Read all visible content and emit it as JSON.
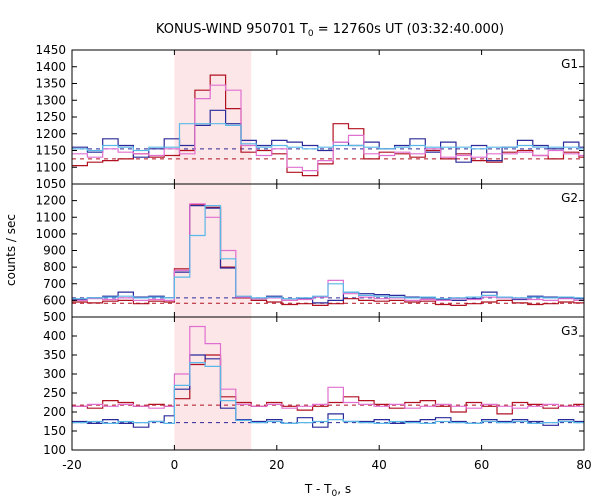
{
  "chart_data": {
    "type": "line",
    "title": "KONUS-WIND 950701 T",
    "title_sub": "0",
    "title_rest": " = 12760s UT (03:32:40.000)",
    "xlabel_main": "T - T",
    "xlabel_sub": "0",
    "xlabel_tail": ", s",
    "ylabel": "counts / sec",
    "xlim": [
      -20,
      80
    ],
    "x_ticks": [
      -20,
      0,
      20,
      40,
      60,
      80
    ],
    "highlight_interval": [
      0,
      15
    ],
    "colors": {
      "dark_red": "#b01020",
      "dark_blue": "#2a2a9a",
      "pink": "#e070d0",
      "light_blue": "#5ab8e8",
      "highlight": "#fde6e8"
    },
    "panels": [
      {
        "label": "G1",
        "ylim": [
          1050,
          1450
        ],
        "y_ticks": [
          1050,
          1100,
          1150,
          1200,
          1250,
          1300,
          1350,
          1400,
          1450
        ],
        "baselines": [
          {
            "y": 1155,
            "color": "dark_blue"
          },
          {
            "y": 1125,
            "color": "dark_red"
          }
        ],
        "series": [
          {
            "color": "dark_red",
            "edges": [
              -20,
              -17,
              -14,
              -11,
              -8,
              -5,
              -2,
              1,
              4,
              7,
              10,
              13,
              16,
              19,
              22,
              25,
              28,
              31,
              34,
              37,
              40,
              43,
              46,
              49,
              52,
              55,
              58,
              61,
              64,
              67,
              70,
              73,
              76,
              79,
              80
            ],
            "values": [
              1105,
              1115,
              1120,
              1125,
              1140,
              1130,
              1135,
              1150,
              1330,
              1375,
              1275,
              1145,
              1150,
              1140,
              1085,
              1075,
              1110,
              1230,
              1215,
              1125,
              1145,
              1140,
              1130,
              1150,
              1125,
              1140,
              1120,
              1115,
              1145,
              1150,
              1135,
              1125,
              1145,
              1130
            ]
          },
          {
            "color": "dark_blue",
            "edges": [
              -20,
              -17,
              -14,
              -11,
              -8,
              -5,
              -2,
              1,
              4,
              7,
              10,
              13,
              16,
              19,
              22,
              25,
              28,
              31,
              34,
              37,
              40,
              43,
              46,
              49,
              52,
              55,
              58,
              61,
              64,
              67,
              70,
              73,
              76,
              79,
              80
            ],
            "values": [
              1160,
              1145,
              1185,
              1165,
              1130,
              1155,
              1185,
              1165,
              1225,
              1270,
              1230,
              1180,
              1165,
              1180,
              1175,
              1165,
              1150,
              1175,
              1165,
              1175,
              1155,
              1165,
              1185,
              1145,
              1175,
              1115,
              1165,
              1120,
              1160,
              1180,
              1165,
              1155,
              1175,
              1160
            ]
          },
          {
            "color": "pink",
            "edges": [
              -20,
              -17,
              -14,
              -11,
              -8,
              -5,
              -2,
              1,
              4,
              7,
              10,
              13,
              16,
              19,
              22,
              25,
              28,
              31,
              34,
              37,
              40,
              43,
              46,
              49,
              52,
              55,
              58,
              61,
              64,
              67,
              70,
              73,
              76,
              79,
              80
            ],
            "values": [
              1140,
              1130,
              1155,
              1145,
              1140,
              1135,
              1155,
              1140,
              1305,
              1345,
              1330,
              1165,
              1135,
              1155,
              1100,
              1090,
              1120,
              1175,
              1195,
              1140,
              1135,
              1145,
              1140,
              1155,
              1130,
              1135,
              1130,
              1140,
              1140,
              1145,
              1135,
              1150,
              1140,
              1135
            ]
          },
          {
            "color": "light_blue",
            "edges": [
              -20,
              -17,
              -14,
              -11,
              -8,
              -5,
              -2,
              1,
              4,
              7,
              10,
              13,
              16,
              19,
              22,
              25,
              28,
              31,
              34,
              37,
              40,
              43,
              46,
              49,
              52,
              55,
              58,
              61,
              64,
              67,
              70,
              73,
              76,
              79,
              80
            ],
            "values": [
              1155,
              1150,
              1165,
              1160,
              1150,
              1160,
              1160,
              1230,
              1230,
              1230,
              1225,
              1170,
              1160,
              1165,
              1160,
              1155,
              1160,
              1165,
              1165,
              1160,
              1155,
              1160,
              1165,
              1160,
              1160,
              1160,
              1155,
              1160,
              1160,
              1165,
              1160,
              1160,
              1160,
              1155
            ]
          }
        ]
      },
      {
        "label": "G2",
        "ylim": [
          500,
          1300
        ],
        "y_ticks": [
          500,
          600,
          700,
          800,
          900,
          1000,
          1100,
          1200
        ],
        "baselines": [
          {
            "y": 615,
            "color": "dark_blue"
          },
          {
            "y": 583,
            "color": "dark_red"
          }
        ],
        "series": [
          {
            "color": "dark_red",
            "edges": [
              -20,
              -17,
              -14,
              -11,
              -8,
              -5,
              -2,
              0,
              3,
              6,
              9,
              12,
              15,
              18,
              21,
              24,
              27,
              30,
              33,
              36,
              39,
              42,
              45,
              48,
              51,
              54,
              57,
              60,
              63,
              66,
              69,
              72,
              75,
              78,
              80
            ],
            "values": [
              590,
              585,
              595,
              600,
              580,
              595,
              590,
              790,
              1175,
              1160,
              800,
              615,
              600,
              590,
              575,
              580,
              570,
              580,
              610,
              600,
              595,
              600,
              590,
              595,
              575,
              570,
              580,
              590,
              600,
              585,
              575,
              580,
              590,
              585
            ]
          },
          {
            "color": "dark_blue",
            "edges": [
              -20,
              -17,
              -14,
              -11,
              -8,
              -5,
              -2,
              0,
              3,
              6,
              9,
              12,
              15,
              18,
              21,
              24,
              27,
              30,
              33,
              36,
              39,
              42,
              45,
              48,
              51,
              54,
              57,
              60,
              63,
              66,
              69,
              72,
              75,
              78,
              80
            ],
            "values": [
              605,
              615,
              625,
              650,
              620,
              625,
              615,
              770,
              1170,
              1155,
              795,
              620,
              610,
              625,
              600,
              610,
              585,
              600,
              650,
              640,
              635,
              630,
              620,
              615,
              605,
              600,
              610,
              650,
              615,
              605,
              625,
              620,
              615,
              610
            ]
          },
          {
            "color": "pink",
            "edges": [
              -20,
              -17,
              -14,
              -11,
              -8,
              -5,
              -2,
              0,
              3,
              6,
              9,
              12,
              15,
              18,
              21,
              24,
              27,
              30,
              33,
              36,
              39,
              42,
              45,
              48,
              51,
              54,
              57,
              60,
              63,
              66,
              69,
              72,
              75,
              78,
              80
            ],
            "values": [
              600,
              610,
              605,
              615,
              600,
              605,
              600,
              780,
              1180,
              1100,
              900,
              620,
              610,
              615,
              600,
              605,
              620,
              720,
              640,
              620,
              610,
              615,
              600,
              605,
              600,
              610,
              605,
              620,
              615,
              610,
              605,
              600,
              610,
              600
            ]
          },
          {
            "color": "light_blue",
            "edges": [
              -20,
              -17,
              -14,
              -11,
              -8,
              -5,
              -2,
              0,
              3,
              6,
              9,
              12,
              15,
              18,
              21,
              24,
              27,
              30,
              33,
              36,
              39,
              42,
              45,
              48,
              51,
              54,
              57,
              60,
              63,
              66,
              69,
              72,
              75,
              78,
              80
            ],
            "values": [
              610,
              615,
              620,
              625,
              615,
              620,
              615,
              740,
              990,
              1170,
              850,
              625,
              615,
              620,
              610,
              615,
              625,
              700,
              650,
              630,
              625,
              620,
              615,
              620,
              610,
              615,
              620,
              630,
              620,
              615,
              620,
              615,
              620,
              615
            ]
          }
        ]
      },
      {
        "label": "G3",
        "ylim": [
          100,
          450
        ],
        "y_ticks": [
          100,
          150,
          200,
          250,
          300,
          350,
          400
        ],
        "baselines": [
          {
            "y": 218,
            "color": "dark_red"
          },
          {
            "y": 172,
            "color": "dark_blue"
          }
        ],
        "series": [
          {
            "color": "dark_red",
            "edges": [
              -20,
              -17,
              -14,
              -11,
              -8,
              -5,
              -2,
              0,
              3,
              6,
              9,
              12,
              15,
              18,
              21,
              24,
              27,
              30,
              33,
              36,
              39,
              42,
              45,
              48,
              51,
              54,
              57,
              60,
              63,
              66,
              69,
              72,
              75,
              78,
              80
            ],
            "values": [
              215,
              210,
              230,
              225,
              215,
              220,
              215,
              235,
              325,
              350,
              240,
              225,
              215,
              225,
              215,
              205,
              215,
              225,
              240,
              230,
              220,
              210,
              225,
              230,
              215,
              200,
              225,
              215,
              195,
              225,
              220,
              210,
              215,
              220
            ]
          },
          {
            "color": "dark_blue",
            "edges": [
              -20,
              -17,
              -14,
              -11,
              -8,
              -5,
              -2,
              0,
              3,
              6,
              9,
              12,
              15,
              18,
              21,
              24,
              27,
              30,
              33,
              36,
              39,
              42,
              45,
              48,
              51,
              54,
              57,
              60,
              63,
              66,
              69,
              72,
              75,
              78,
              80
            ],
            "values": [
              175,
              170,
              180,
              170,
              160,
              175,
              190,
              260,
              350,
              340,
              210,
              180,
              175,
              180,
              170,
              185,
              160,
              195,
              175,
              175,
              180,
              170,
              175,
              180,
              185,
              175,
              170,
              180,
              175,
              180,
              175,
              165,
              180,
              175
            ]
          },
          {
            "color": "pink",
            "edges": [
              -20,
              -17,
              -14,
              -11,
              -8,
              -5,
              -2,
              0,
              3,
              6,
              9,
              12,
              15,
              18,
              21,
              24,
              27,
              30,
              33,
              36,
              39,
              42,
              45,
              48,
              51,
              54,
              57,
              60,
              63,
              66,
              69,
              72,
              75,
              78,
              80
            ],
            "values": [
              215,
              220,
              215,
              220,
              215,
              210,
              215,
              300,
              425,
              380,
              260,
              220,
              215,
              220,
              210,
              215,
              220,
              265,
              225,
              220,
              215,
              220,
              210,
              215,
              220,
              215,
              210,
              220,
              215,
              210,
              215,
              220,
              215,
              215
            ]
          },
          {
            "color": "light_blue",
            "edges": [
              -20,
              -17,
              -14,
              -11,
              -8,
              -5,
              -2,
              0,
              3,
              6,
              9,
              12,
              15,
              18,
              21,
              24,
              27,
              30,
              33,
              36,
              39,
              42,
              45,
              48,
              51,
              54,
              57,
              60,
              63,
              66,
              69,
              72,
              75,
              78,
              80
            ],
            "values": [
              172,
              175,
              170,
              175,
              172,
              175,
              170,
              270,
              330,
              320,
              230,
              178,
              172,
              175,
              170,
              172,
              175,
              180,
              175,
              172,
              170,
              175,
              172,
              170,
              175,
              172,
              170,
              175,
              172,
              175,
              170,
              172,
              175,
              172
            ]
          }
        ]
      }
    ]
  }
}
